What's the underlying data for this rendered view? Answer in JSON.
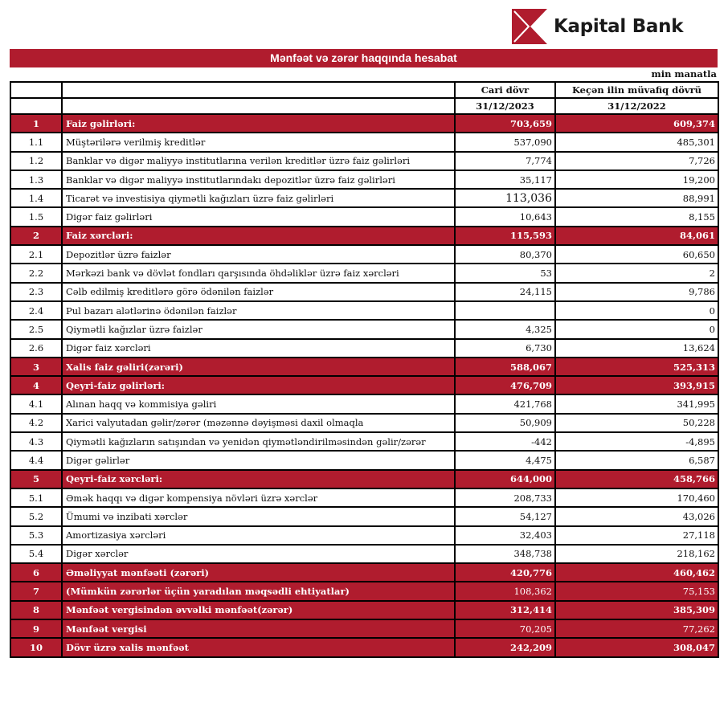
{
  "brand": {
    "name": "Kapital Bank",
    "color": "#b01c2e"
  },
  "title": "Mənfəət və zərər haqqında hesabat",
  "unit": "min manatla",
  "columns": {
    "current": {
      "label": "Cari dövr",
      "date": "31/12/2023"
    },
    "previous": {
      "label": "Keçən ilin müvafiq dövrü",
      "date": "31/12/2022"
    }
  },
  "rows": [
    {
      "num": "1",
      "label": "Faiz gəlirləri:",
      "current": "703,659",
      "previous": "609,374",
      "section": true
    },
    {
      "num": "1.1",
      "label": "Müştərilərə verilmiş kreditlər",
      "current": "537,090",
      "previous": "485,301"
    },
    {
      "num": "1.2",
      "label": "Banklar və digər maliyyə institutlarına verilən kreditlər üzrə faiz gəlirləri",
      "current": "7,774",
      "previous": "7,726"
    },
    {
      "num": "1.3",
      "label": "Banklar və digər maliyyə institutlarındakı depozitlər üzrə faiz gəlirləri",
      "current": "35,117",
      "previous": "19,200"
    },
    {
      "num": "1.4",
      "label": "Ticarət və investisiya qiymətli kağızları üzrə faiz gəlirləri",
      "current": "113,036",
      "previous": "88,991"
    },
    {
      "num": "1.5",
      "label": "Digər faiz gəlirləri",
      "current": "10,643",
      "previous": "8,155"
    },
    {
      "num": "2",
      "label": "Faiz xərcləri:",
      "current": "115,593",
      "previous": "84,061",
      "section": true
    },
    {
      "num": "2.1",
      "label": "Depozitlər üzrə faizlər",
      "current": "80,370",
      "previous": "60,650"
    },
    {
      "num": "2.2",
      "label": "Mərkəzi bank və dövlət fondları qarşısında öhdəliklər üzrə faiz xərcləri",
      "current": "53",
      "previous": "2"
    },
    {
      "num": "2.3",
      "label": "Cəlb edilmiş kreditlərə görə ödənilən faizlər",
      "current": "24,115",
      "previous": "9,786"
    },
    {
      "num": "2.4",
      "label": "Pul bazarı alətlərinə ödənilən faizlər",
      "current": "",
      "previous": "0"
    },
    {
      "num": "2.5",
      "label": "Qiymətli kağızlar üzrə faizlər",
      "current": "4,325",
      "previous": "0"
    },
    {
      "num": "2.6",
      "label": "Digər faiz xərcləri",
      "current": "6,730",
      "previous": "13,624"
    },
    {
      "num": "3",
      "label": "Xalis faiz gəliri(zərəri)",
      "current": "588,067",
      "previous": "525,313",
      "section": true
    },
    {
      "num": "4",
      "label": "Qeyri-faiz gəlirləri:",
      "current": "476,709",
      "previous": "393,915",
      "section": true
    },
    {
      "num": "4.1",
      "label": "Alınan haqq və kommisiya gəliri",
      "current": "421,768",
      "previous": "341,995"
    },
    {
      "num": "4.2",
      "label": "Xarici valyutadan gəlir/zərər (məzənnə dəyişməsi daxil olmaqla",
      "current": "50,909",
      "previous": "50,228"
    },
    {
      "num": "4.3",
      "label": "Qiymətli kağızların satışından və yenidən qiymətləndirilməsindən gəlir/zərər",
      "current": "-442",
      "previous": "-4,895"
    },
    {
      "num": "4.4",
      "label": "Digər gəlirlər",
      "current": "4,475",
      "previous": "6,587"
    },
    {
      "num": "5",
      "label": "Qeyri-faiz xərcləri:",
      "current": "644,000",
      "previous": "458,766",
      "section": true
    },
    {
      "num": "5.1",
      "label": "Əmək haqqı və digər kompensiya növləri üzrə xərclər",
      "current": "208,733",
      "previous": "170,460"
    },
    {
      "num": "5.2",
      "label": "Ümumi və inzibati xərclər",
      "current": "54,127",
      "previous": "43,026"
    },
    {
      "num": "5.3",
      "label": "Amortizasiya xərcləri",
      "current": "32,403",
      "previous": "27,118"
    },
    {
      "num": "5.4",
      "label": "Digər xərclər",
      "current": "348,738",
      "previous": "218,162"
    },
    {
      "num": "6",
      "label": "Əməliyyat mənfəəti (zərəri)",
      "current": "420,776",
      "previous": "460,462",
      "section": true
    },
    {
      "num": "7",
      "label": "(Mümkün zərərlər üçün yaradılan məqsədli ehtiyatlar)",
      "current": "108,362",
      "previous": "75,153",
      "section": true,
      "values_bold": false
    },
    {
      "num": "8",
      "label": "Mənfəət vergisindən əvvəlki mənfəət(zərər)",
      "current": "312,414",
      "previous": "385,309",
      "section": true
    },
    {
      "num": "9",
      "label": "Mənfəət vergisi",
      "current": "70,205",
      "previous": "77,262",
      "section": true,
      "values_bold": false
    },
    {
      "num": "10",
      "label": "Dövr üzrə xalis mənfəət",
      "current": "242,209",
      "previous": "308,047",
      "section": true
    }
  ]
}
